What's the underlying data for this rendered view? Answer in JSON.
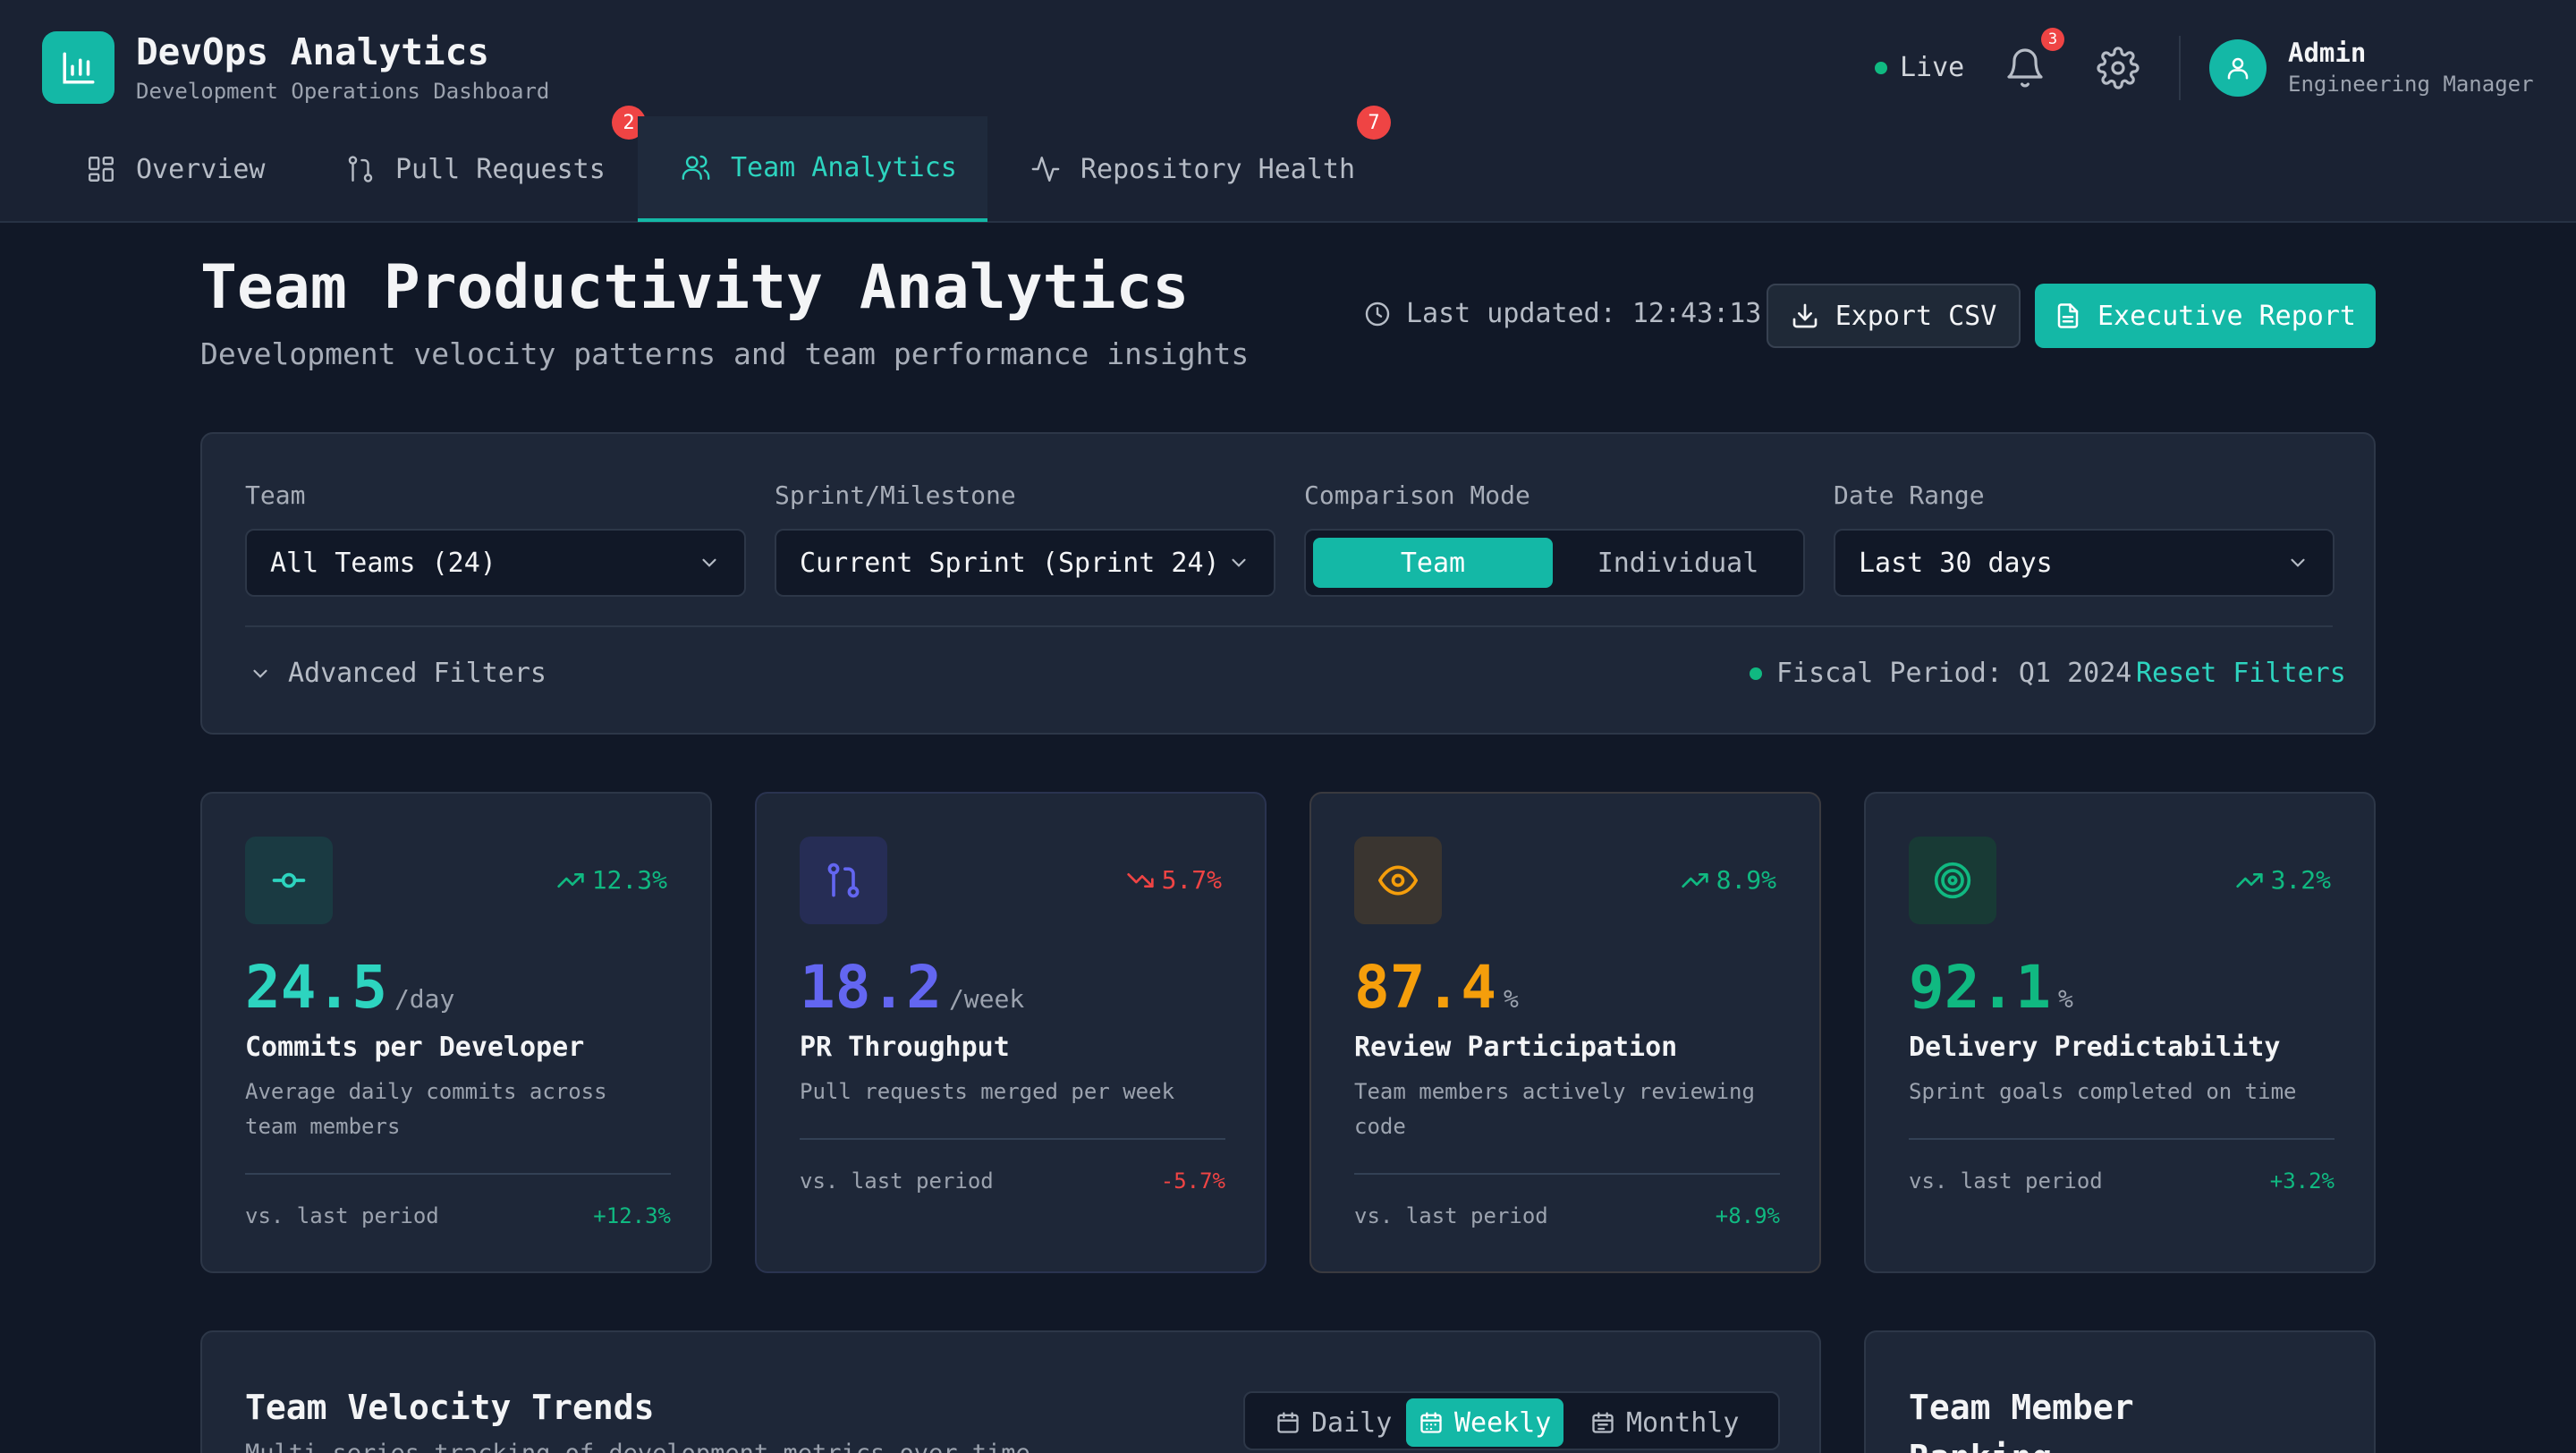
{
  "brand": {
    "title": "DevOps Analytics",
    "subtitle": "Development Operations Dashboard"
  },
  "header": {
    "live_label": "Live",
    "notifications_count": "3",
    "user": {
      "name": "Admin",
      "role": "Engineering Manager"
    }
  },
  "tabs": [
    {
      "label": "Overview",
      "icon": "grid-icon"
    },
    {
      "label": "Pull Requests",
      "icon": "git-pull-request-icon",
      "badge": "2"
    },
    {
      "label": "Team Analytics",
      "icon": "users-icon",
      "active": true
    },
    {
      "label": "Repository Health",
      "icon": "activity-icon",
      "badge": "7"
    }
  ],
  "page": {
    "title": "Team Productivity Analytics",
    "subtitle": "Development velocity patterns and team performance insights",
    "last_updated": "Last updated: 12:43:13",
    "export_label": "Export CSV",
    "executive_label": "Executive Report"
  },
  "filters": {
    "team": {
      "label": "Team",
      "value": "All Teams (24)"
    },
    "sprint": {
      "label": "Sprint/Milestone",
      "value": "Current Sprint (Sprint 24)"
    },
    "comparison": {
      "label": "Comparison Mode",
      "options": [
        "Team",
        "Individual"
      ],
      "selected": "Team"
    },
    "date_range": {
      "label": "Date Range",
      "value": "Last 30 days"
    },
    "advanced_label": "Advanced Filters",
    "fiscal_period": "Fiscal Period: Q1 2024",
    "reset_label": "Reset Filters"
  },
  "metrics": [
    {
      "icon": "git-commit-icon",
      "trend": "12.3%",
      "trend_dir": "up",
      "value": "24.5",
      "unit": "/day",
      "title": "Commits per Developer",
      "description": "Average daily commits across team members",
      "compare_label": "vs. last period",
      "compare_value": "+12.3%",
      "color": "#2dd4bf"
    },
    {
      "icon": "git-pull-request-icon",
      "trend": "5.7%",
      "trend_dir": "down",
      "value": "18.2",
      "unit": "/week",
      "title": "PR Throughput",
      "description": "Pull requests merged per week",
      "compare_label": "vs. last period",
      "compare_value": "-5.7%",
      "color": "#6366f1"
    },
    {
      "icon": "eye-icon",
      "trend": "8.9%",
      "trend_dir": "up",
      "value": "87.4",
      "unit": "%",
      "title": "Review Participation",
      "description": "Team members actively reviewing code",
      "compare_label": "vs. last period",
      "compare_value": "+8.9%",
      "color": "#f59e0b"
    },
    {
      "icon": "target-icon",
      "trend": "3.2%",
      "trend_dir": "up",
      "value": "92.1",
      "unit": "%",
      "title": "Delivery Predictability",
      "description": "Sprint goals completed on time",
      "compare_label": "vs. last period",
      "compare_value": "+3.2%",
      "color": "#10b981"
    }
  ],
  "velocity": {
    "title": "Team Velocity Trends",
    "subtitle": "Multi-series tracking of development metrics over time",
    "ranges": [
      "Daily",
      "Weekly",
      "Monthly"
    ],
    "selected_range": "Weekly"
  },
  "ranking": {
    "title": "Team Member Ranking"
  },
  "colors": {
    "accent": "#14b8a6",
    "positive": "#10b981",
    "negative": "#ef4444",
    "background": "#111827",
    "surface": "#1e2738"
  }
}
